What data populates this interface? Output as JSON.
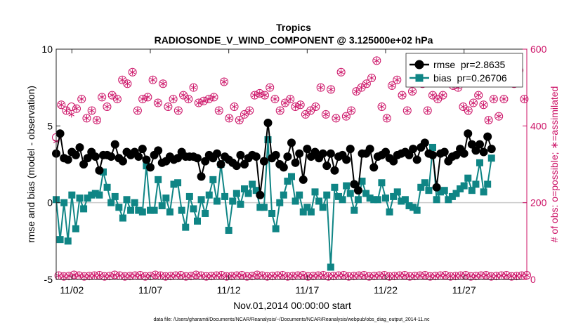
{
  "chart_data": {
    "type": "line",
    "title": "Tropics",
    "subtitle": "RADIOSONDE_V_WIND_COMPONENT @ 3.125000e+02 hPa",
    "xlabel": "Nov.01,2014 00:00:00 start",
    "ylabel_left": "rmse and bias (model - observation)",
    "ylabel_right": "# of obs: o=possible; ∗=assimilated",
    "footer": "data file: /Users/gharamti/Documents/NCAR/Reanalysis/~/Documents/NCAR/Reanalysis/webpub/obs_diag_output_2014-11.nc",
    "xlim": [
      1,
      31
    ],
    "ylim_left": [
      -5,
      10
    ],
    "ylim_right": [
      0,
      600
    ],
    "x_ticks": [
      2,
      7,
      12,
      17,
      22,
      27
    ],
    "x_tick_labels": [
      "11/02",
      "11/07",
      "11/12",
      "11/17",
      "11/22",
      "11/27"
    ],
    "y_left_ticks": [
      -5,
      0,
      5,
      10
    ],
    "y_left_tick_labels": [
      "-5",
      "0",
      "5",
      "10"
    ],
    "y_right_ticks": [
      0,
      200,
      400,
      600
    ],
    "y_right_tick_labels": [
      "0",
      "200",
      "400",
      "600"
    ],
    "legend": [
      {
        "name": "rmse  pr=2.8635",
        "key": "rmse"
      },
      {
        "name": "bias  pr=0.26706",
        "key": "bias"
      }
    ],
    "legend_position": "top-right",
    "zero_line": true,
    "series": {
      "x_start": 1.0,
      "x_step": 0.25,
      "rmse": [
        3.2,
        4.5,
        2.9,
        2.8,
        3.3,
        3.1,
        3.6,
        2.5,
        2.9,
        3.3,
        3.0,
        2.1,
        3.1,
        3.1,
        3.0,
        3.8,
        2.9,
        2.7,
        3.3,
        3.1,
        3.3,
        3.0,
        3.5,
        2.8,
        2.3,
        3.1,
        3.4,
        2.6,
        2.7,
        3.0,
        2.8,
        2.9,
        3.3,
        3.0,
        3.0,
        3.0,
        2.9,
        1.7,
        2.7,
        3.1,
        2.9,
        3.2,
        2.5,
        3.0,
        2.8,
        2.6,
        2.4,
        3.1,
        2.5,
        2.9,
        3.1,
        3.0,
        0.5,
        2.7,
        5.2,
        2.9,
        3.1,
        2.5,
        2.3,
        3.0,
        3.9,
        2.6,
        3.2,
        1.5,
        3.5,
        3.0,
        3.3,
        2.9,
        3.2,
        2.4,
        3.2,
        2.1,
        3.0,
        3.1,
        2.8,
        3.5,
        1.2,
        0.8,
        3.2,
        3.2,
        3.5,
        2.3,
        3.0,
        3.1,
        3.3,
        2.9,
        2.7,
        3.1,
        3.2,
        3.3,
        3.1,
        3.5,
        2.8,
        3.6,
        3.9,
        3.2,
        3.1,
        1.0,
        3.2,
        3.3,
        2.7,
        3.0,
        3.1,
        3.5,
        3.2,
        4.5,
        3.8,
        3.4,
        3.8,
        3.3,
        4.3,
        3.5
      ],
      "bias": [
        0.2,
        -2.4,
        0.0,
        -2.5,
        0.5,
        -1.7,
        0.3,
        -0.4,
        0.3,
        0.5,
        0.6,
        0.5,
        2.0,
        1.0,
        0.0,
        0.4,
        -0.3,
        -1.0,
        0.2,
        -0.5,
        0.0,
        -0.5,
        -0.6,
        2.4,
        -0.5,
        -0.5,
        1.5,
        -0.2,
        0.3,
        -0.6,
        1.2,
        1.3,
        -0.5,
        -1.6,
        0.4,
        -0.4,
        -1.2,
        0.2,
        -0.7,
        0.5,
        1.5,
        0.1,
        2.5,
        0.4,
        -1.8,
        0.1,
        0.6,
        -0.1,
        0.9,
        0.6,
        1.2,
        0.8,
        -0.3,
        -0.3,
        4.1,
        -0.7,
        -1.7,
        0.0,
        0.5,
        1.4,
        1.7,
        0.1,
        0.5,
        -0.6,
        -0.3,
        -0.6,
        0.7,
        0.1,
        -0.3,
        0.5,
        -4.2,
        1.0,
        0.4,
        0.2,
        1.1,
        0.6,
        -0.5,
        0.2,
        1.4,
        0.6,
        0.3,
        0.2,
        0.2,
        1.3,
        0.3,
        -0.6,
        0.4,
        0.7,
        0.1,
        0.2,
        -0.2,
        -0.3,
        -0.5,
        1.0,
        1.3,
        0.8,
        3.6,
        0.2,
        0.7,
        0.8,
        0.2,
        0.4,
        0.6,
        0.9,
        1.1,
        1.6,
        0.8,
        1.2,
        2.6,
        0.7,
        1.2,
        2.9
      ],
      "obs_possible": [
        370,
        10,
        455,
        8,
        440,
        9,
        450,
        12,
        445,
        10,
        470,
        8,
        420,
        9,
        440,
        10,
        415,
        11,
        475,
        8,
        450,
        9,
        480,
        12,
        470,
        10,
        520,
        8,
        510,
        9,
        540,
        10,
        440,
        11,
        470,
        8,
        475,
        9,
        520,
        12,
        460,
        10,
        510,
        8,
        450,
        9,
        470,
        10,
        440,
        11,
        480,
        8,
        470,
        9,
        500,
        12,
        460,
        10,
        465,
        8,
        470,
        9,
        475,
        10,
        440,
        11,
        515,
        8,
        420,
        9,
        450,
        10,
        415,
        11,
        430,
        8,
        440,
        9,
        480,
        12,
        485,
        10,
        480,
        8,
        500,
        9,
        470,
        10,
        440,
        11,
        460,
        8,
        470,
        9,
        450,
        10,
        455,
        11,
        430,
        8,
        440,
        9,
        450,
        10,
        500,
        11,
        430,
        8,
        495,
        9,
        420,
        10,
        540,
        11,
        425,
        8,
        440,
        9,
        490,
        10,
        500,
        11,
        510,
        8,
        525,
        9,
        570,
        10,
        450,
        11,
        420,
        8,
        505,
        9,
        520,
        10,
        480,
        11,
        440,
        8,
        490,
        9,
        520,
        10,
        510,
        11,
        440,
        8,
        480,
        9,
        470,
        10,
        480,
        11,
        540,
        8,
        505,
        9,
        500,
        10,
        450,
        11,
        440,
        8,
        460,
        9,
        480,
        10,
        455,
        11,
        415,
        8,
        470,
        9,
        425,
        10,
        470,
        11,
        530,
        8,
        510,
        9,
        545,
        10,
        470,
        11
      ],
      "obs_assimilated": [
        360,
        10,
        455,
        8,
        440,
        9,
        430,
        12,
        445,
        10,
        470,
        8,
        420,
        9,
        440,
        10,
        415,
        11,
        475,
        8,
        450,
        9,
        480,
        12,
        470,
        10,
        520,
        8,
        510,
        9,
        540,
        10,
        440,
        11,
        470,
        8,
        475,
        9,
        520,
        12,
        460,
        10,
        510,
        8,
        450,
        9,
        470,
        10,
        440,
        11,
        480,
        8,
        470,
        9,
        500,
        12,
        460,
        10,
        465,
        8,
        470,
        9,
        475,
        10,
        440,
        11,
        515,
        8,
        420,
        9,
        450,
        10,
        415,
        11,
        430,
        8,
        440,
        9,
        480,
        12,
        485,
        10,
        480,
        8,
        500,
        9,
        470,
        10,
        440,
        11,
        460,
        8,
        470,
        9,
        450,
        10,
        455,
        11,
        430,
        8,
        440,
        9,
        450,
        10,
        500,
        11,
        430,
        8,
        495,
        9,
        420,
        10,
        540,
        11,
        425,
        8,
        440,
        9,
        490,
        10,
        500,
        11,
        510,
        8,
        525,
        9,
        570,
        10,
        450,
        11,
        420,
        8,
        505,
        9,
        520,
        10,
        480,
        11,
        440,
        8,
        490,
        9,
        520,
        10,
        510,
        11,
        440,
        8,
        480,
        9,
        470,
        10,
        480,
        11,
        540,
        8,
        505,
        9,
        500,
        10,
        450,
        11,
        440,
        8,
        460,
        9,
        480,
        10,
        455,
        11,
        415,
        8,
        470,
        9,
        425,
        10,
        470,
        11,
        530,
        8,
        510,
        9,
        545,
        10,
        470,
        11
      ]
    },
    "colors": {
      "rmse": "#000000",
      "bias": "#0f8585",
      "obs": "#cc1166",
      "zero_line": "#cccccc",
      "axes": "#262626"
    }
  }
}
